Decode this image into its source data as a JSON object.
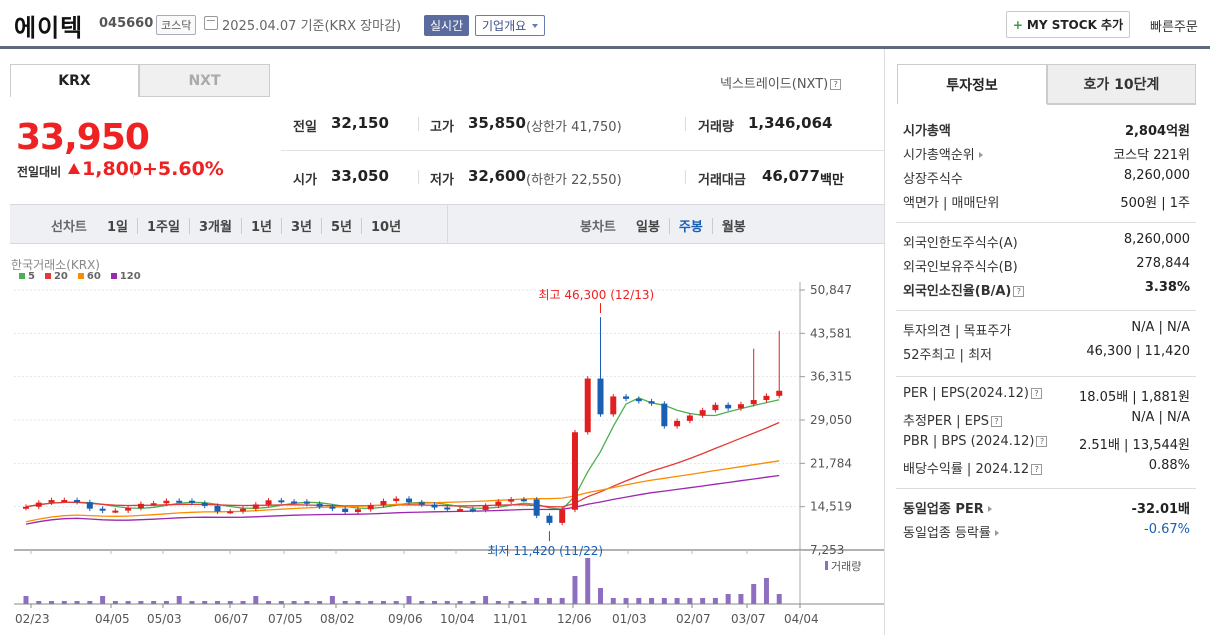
{
  "header": {
    "company": "에이텍",
    "code": "045660",
    "market_badge": "코스닥",
    "date_text": "2025.04.07 기준(KRX 장마감)",
    "realtime_label": "실시간",
    "company_overview_label": "기업개요",
    "mystock_label": "MY STOCK 추가",
    "quick_order_label": "빠른주문"
  },
  "exchange_tabs": [
    "KRX",
    "NXT"
  ],
  "nxt_link": "넥스트레이드(NXT)",
  "price": {
    "current": "33,950",
    "change_label": "전일대비",
    "change": "1,800",
    "change_pct": "+5.60%"
  },
  "stats": {
    "prev_label": "전일",
    "prev": "32,150",
    "high_label": "고가",
    "high": "35,850",
    "upper_limit": "(상한가 41,750)",
    "volume_label": "거래량",
    "volume": "1,346,064",
    "open_label": "시가",
    "open": "33,050",
    "low_label": "저가",
    "low": "32,600",
    "lower_limit": "(하한가 22,550)",
    "amount_label": "거래대금",
    "amount": "46,077",
    "amount_unit": "백만"
  },
  "toolbar": {
    "line_label": "선차트",
    "periods": [
      "1일",
      "1주일",
      "3개월",
      "1년",
      "3년",
      "5년",
      "10년"
    ],
    "candle_label": "봉차트",
    "candle_periods": [
      "일봉",
      "주봉",
      "월봉"
    ]
  },
  "chart_data": {
    "type": "candlestick",
    "source_label": "한국거래소(KRX)",
    "legend": [
      {
        "name": "5",
        "color": "#4caf50"
      },
      {
        "name": "20",
        "color": "#e53935"
      },
      {
        "name": "60",
        "color": "#fb8c00"
      },
      {
        "name": "120",
        "color": "#9c27b0"
      }
    ],
    "y_ticks": [
      "50,847",
      "43,581",
      "36,315",
      "29,050",
      "21,784",
      "14,519",
      "7,253"
    ],
    "ylim": [
      7253,
      50847
    ],
    "x_ticks": [
      "02/23",
      "04/05",
      "05/03",
      "06/07",
      "07/05",
      "08/02",
      "09/06",
      "10/04",
      "11/01",
      "12/06",
      "01/03",
      "02/07",
      "03/07",
      "04/04"
    ],
    "high_annotation": "최고 46,300 (12/13)",
    "low_annotation": "최저 11,420 (11/22)",
    "volume_label": "거래량",
    "up_color": "#e02020",
    "down_color": "#1a5fb4"
  },
  "invest_tabs": [
    "투자정보",
    "호가 10단계"
  ],
  "invest_info": {
    "group1": [
      {
        "k": "시가총액",
        "v": "2,804억원"
      },
      {
        "k": "시가총액순위",
        "v": "코스닥 221위"
      },
      {
        "k": "상장주식수",
        "v": "8,260,000"
      },
      {
        "k": "액면가 | 매매단위",
        "v": "500원 | 1주"
      }
    ],
    "group2": [
      {
        "k": "외국인한도주식수(A)",
        "v": "8,260,000"
      },
      {
        "k": "외국인보유주식수(B)",
        "v": "278,844"
      },
      {
        "k": "외국인소진율(B/A)",
        "v": "3.38%"
      }
    ],
    "group3": [
      {
        "k": "투자의견 | 목표주가",
        "v": "N/A | N/A"
      },
      {
        "k": "52주최고 | 최저",
        "v": "46,300 | 11,420"
      }
    ],
    "group4": [
      {
        "k": "PER | EPS(2024.12)",
        "v": "18.05배 | 1,881원"
      },
      {
        "k": "추정PER | EPS",
        "v": "N/A | N/A"
      },
      {
        "k": "PBR | BPS (2024.12)",
        "v": "2.51배 | 13,544원"
      },
      {
        "k": "배당수익률 | 2024.12",
        "v": "0.88%"
      }
    ],
    "group5": [
      {
        "k": "동일업종 PER",
        "v": "-32.01배"
      },
      {
        "k": "동일업종 등락률",
        "v": "-0.67%"
      }
    ]
  }
}
